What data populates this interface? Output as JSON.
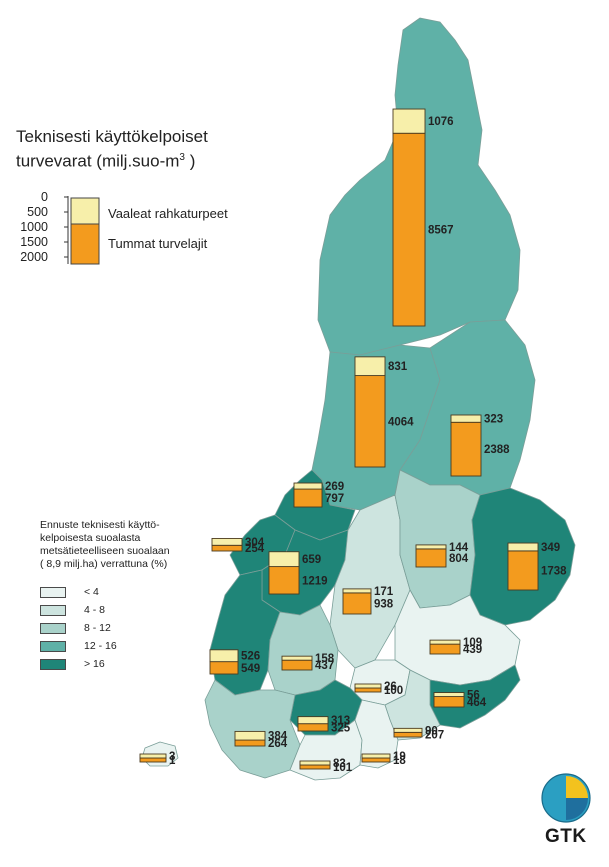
{
  "title_line1": "Teknisesti käyttökelpoiset",
  "title_line2_prefix": "turvevarat (milj.suo-m",
  "title_sup": "3",
  "title_line2_suffix": " )",
  "scale_legend": {
    "ticks": [
      "0",
      "500",
      "1000",
      "1500",
      "2000"
    ],
    "light_label": "Vaaleat rahkaturpeet",
    "dark_label": "Tummat turvelajit",
    "light_color": "#f7efaa",
    "dark_color": "#f39b1e"
  },
  "forecast_legend": {
    "title_lines": [
      "Ennuste teknisesti käyttö-",
      "kelpoisesta suoalasta",
      "metsätieteelliseen suoalaan",
      "( 8,9 milj.ha) verrattuna  (%)"
    ],
    "classes": [
      {
        "label": "< 4",
        "color": "#e9f3f1"
      },
      {
        "label": "4 - 8",
        "color": "#cde4df"
      },
      {
        "label": "8 - 12",
        "color": "#a9d2ca"
      },
      {
        "label": "12 - 16",
        "color": "#5fb1a7"
      },
      {
        "label": "> 16",
        "color": "#1f8578"
      }
    ]
  },
  "regions": [
    {
      "name": "Lapland",
      "light": "1076",
      "dark": "8567",
      "class": 3
    },
    {
      "name": "Oulu-west",
      "light": "831",
      "dark": "4064",
      "class": 3
    },
    {
      "name": "Kainuu",
      "light": "323",
      "dark": "2388",
      "class": 3
    },
    {
      "name": "Central Ostrobothnia",
      "light": "269",
      "dark": "797",
      "class": 4
    },
    {
      "name": "Vaasa coast",
      "light": "304",
      "dark": "254",
      "class": 4
    },
    {
      "name": "South Ostrobothnia",
      "light": "659",
      "dark": "1219",
      "class": 4
    },
    {
      "name": "Central Finland",
      "light": "171",
      "dark": "938",
      "class": 1
    },
    {
      "name": "Northern Savonia",
      "light": "144",
      "dark": "804",
      "class": 2
    },
    {
      "name": "North Karelia",
      "light": "349",
      "dark": "1738",
      "class": 4
    },
    {
      "name": "Satakunta",
      "light": "526",
      "dark": "549",
      "class": 4
    },
    {
      "name": "Pirkanmaa",
      "light": "158",
      "dark": "437",
      "class": 2
    },
    {
      "name": "Southern Savonia",
      "light": "109",
      "dark": "439",
      "class": 0
    },
    {
      "name": "Päijät-Häme",
      "light": "26",
      "dark": "100",
      "class": 0
    },
    {
      "name": "South Karelia",
      "light": "56",
      "dark": "464",
      "class": 4
    },
    {
      "name": "Kanta-Häme",
      "light": "313",
      "dark": "325",
      "class": 4
    },
    {
      "name": "Kymenlaakso",
      "light": "90",
      "dark": "207",
      "class": 1
    },
    {
      "name": "Southwest Finland",
      "light": "384",
      "dark": "264",
      "class": 2
    },
    {
      "name": "Uusimaa west",
      "light": "83",
      "dark": "101",
      "class": 0
    },
    {
      "name": "Uusimaa east",
      "light": "19",
      "dark": "18",
      "class": 0
    },
    {
      "name": "Åland",
      "light": "3",
      "dark": "1",
      "class": 0
    }
  ],
  "logo_text": "GTK"
}
